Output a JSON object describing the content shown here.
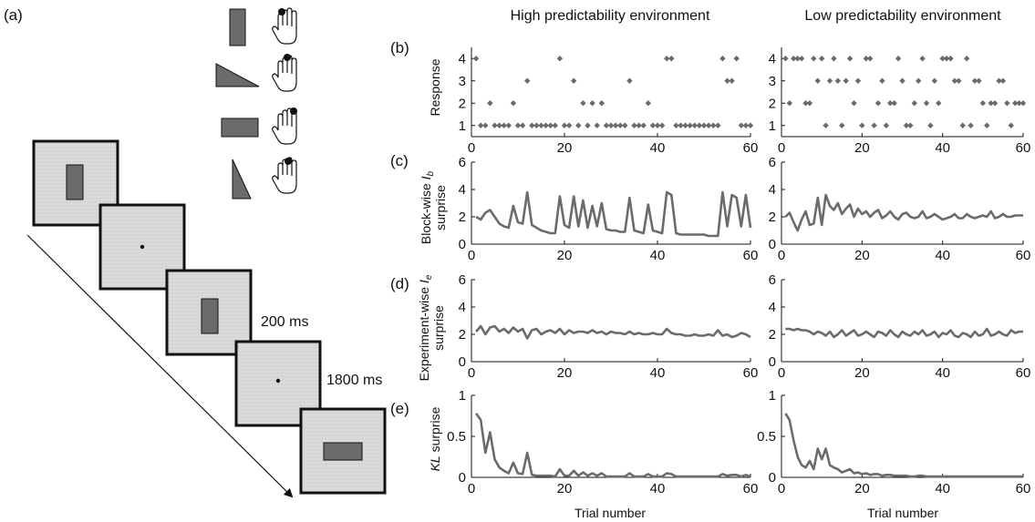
{
  "panels": {
    "a": "(a)",
    "b": "(b)",
    "c": "(c)",
    "d": "(d)",
    "e": "(e)"
  },
  "timing": {
    "stimulus": "200 ms",
    "interval": "1800 ms"
  },
  "icons": {
    "stimuli": [
      "vertical-rectangle",
      "horizontal-triangle",
      "horizontal-rectangle",
      "vertical-triangle"
    ],
    "hands": [
      "index-finger-hand-icon",
      "middle-finger-hand-icon",
      "ring-finger-hand-icon",
      "little-finger-hand-icon"
    ]
  },
  "colors": {
    "series": "#6b6b6b",
    "screen_fill": "#d9d9d9",
    "stimulus_fill": "#6b6b6b"
  },
  "columns": [
    "High predictability environment",
    "Low predictability environment"
  ],
  "chart_data": [
    {
      "id": "b-high",
      "type": "scatter",
      "ylabel": "Response",
      "xlim": [
        0,
        60
      ],
      "ylim": [
        0.5,
        4.5
      ],
      "xticks": [
        0,
        20,
        40,
        60
      ],
      "yticks": [
        1,
        2,
        3,
        4
      ],
      "x": [
        1,
        2,
        3,
        4,
        5,
        6,
        7,
        8,
        9,
        10,
        11,
        12,
        13,
        14,
        15,
        16,
        17,
        18,
        19,
        20,
        21,
        22,
        23,
        24,
        25,
        26,
        27,
        28,
        29,
        30,
        31,
        32,
        33,
        34,
        35,
        36,
        37,
        38,
        39,
        40,
        41,
        42,
        43,
        44,
        45,
        46,
        47,
        48,
        49,
        50,
        51,
        52,
        53,
        54,
        55,
        56,
        57,
        58,
        59,
        60
      ],
      "y": [
        4,
        1,
        1,
        2,
        1,
        1,
        1,
        1,
        2,
        1,
        1,
        3,
        1,
        1,
        1,
        1,
        1,
        1,
        4,
        1,
        1,
        3,
        1,
        2,
        1,
        2,
        1,
        2,
        1,
        1,
        1,
        1,
        1,
        3,
        1,
        1,
        1,
        2,
        1,
        1,
        1,
        4,
        4,
        1,
        1,
        1,
        1,
        1,
        1,
        1,
        1,
        1,
        1,
        4,
        3,
        3,
        4,
        1,
        1,
        1
      ]
    },
    {
      "id": "b-low",
      "type": "scatter",
      "ylabel": "Response",
      "xlim": [
        0,
        60
      ],
      "ylim": [
        0.5,
        4.5
      ],
      "xticks": [
        0,
        20,
        40,
        60
      ],
      "yticks": [
        1,
        2,
        3,
        4
      ],
      "x": [
        1,
        2,
        3,
        4,
        5,
        6,
        7,
        8,
        9,
        10,
        11,
        12,
        13,
        14,
        15,
        16,
        17,
        18,
        19,
        20,
        21,
        22,
        23,
        24,
        25,
        26,
        27,
        28,
        29,
        30,
        31,
        32,
        33,
        34,
        35,
        36,
        37,
        38,
        39,
        40,
        41,
        42,
        43,
        44,
        45,
        46,
        47,
        48,
        49,
        50,
        51,
        52,
        53,
        54,
        55,
        56,
        57,
        58,
        59,
        60
      ],
      "y": [
        4,
        2,
        4,
        4,
        4,
        2,
        2,
        4,
        3,
        4,
        1,
        3,
        4,
        3,
        1,
        3,
        4,
        2,
        3,
        1,
        4,
        4,
        1,
        2,
        3,
        1,
        2,
        2,
        4,
        3,
        1,
        1,
        2,
        3,
        4,
        2,
        1,
        3,
        2,
        4,
        4,
        4,
        3,
        3,
        1,
        4,
        1,
        3,
        3,
        2,
        1,
        2,
        2,
        3,
        3,
        2,
        1,
        2,
        2,
        2
      ]
    },
    {
      "id": "c-high",
      "type": "line",
      "ylabel": "Block-wise surprise I_b",
      "xlim": [
        0,
        60
      ],
      "ylim": [
        0,
        6
      ],
      "xticks": [
        0,
        20,
        40,
        60
      ],
      "yticks": [
        0,
        2,
        4,
        6
      ],
      "x": [
        1,
        2,
        3,
        4,
        5,
        6,
        7,
        8,
        9,
        10,
        11,
        12,
        13,
        14,
        15,
        16,
        17,
        18,
        19,
        20,
        21,
        22,
        23,
        24,
        25,
        26,
        27,
        28,
        29,
        30,
        31,
        32,
        33,
        34,
        35,
        36,
        37,
        38,
        39,
        40,
        41,
        42,
        43,
        44,
        45,
        46,
        47,
        48,
        49,
        50,
        51,
        52,
        53,
        54,
        55,
        56,
        57,
        58,
        59,
        60
      ],
      "y": [
        2.0,
        1.8,
        2.3,
        2.5,
        2.0,
        1.5,
        1.3,
        1.2,
        2.8,
        1.6,
        1.5,
        3.8,
        1.4,
        1.2,
        1.0,
        0.9,
        0.8,
        0.8,
        3.5,
        1.4,
        1.2,
        3.5,
        1.3,
        3.2,
        1.2,
        2.8,
        1.3,
        3.0,
        1.1,
        1.0,
        1.0,
        0.9,
        0.9,
        3.4,
        1.0,
        0.9,
        0.8,
        2.9,
        1.0,
        0.9,
        0.8,
        3.8,
        3.6,
        0.8,
        0.7,
        0.7,
        0.7,
        0.7,
        0.7,
        0.7,
        0.6,
        0.6,
        0.6,
        3.8,
        1.3,
        3.6,
        3.4,
        1.3,
        3.6,
        1.2
      ]
    },
    {
      "id": "c-low",
      "type": "line",
      "ylabel": "Block-wise surprise I_b",
      "xlim": [
        0,
        60
      ],
      "ylim": [
        0,
        6
      ],
      "xticks": [
        0,
        20,
        40,
        60
      ],
      "yticks": [
        0,
        2,
        4,
        6
      ],
      "x": [
        1,
        2,
        3,
        4,
        5,
        6,
        7,
        8,
        9,
        10,
        11,
        12,
        13,
        14,
        15,
        16,
        17,
        18,
        19,
        20,
        21,
        22,
        23,
        24,
        25,
        26,
        27,
        28,
        29,
        30,
        31,
        32,
        33,
        34,
        35,
        36,
        37,
        38,
        39,
        40,
        41,
        42,
        43,
        44,
        45,
        46,
        47,
        48,
        49,
        50,
        51,
        52,
        53,
        54,
        55,
        56,
        57,
        58,
        59,
        60
      ],
      "y": [
        2.0,
        2.3,
        1.6,
        1.0,
        1.8,
        2.4,
        1.4,
        1.5,
        3.4,
        1.4,
        3.6,
        2.8,
        2.5,
        3.0,
        2.2,
        2.6,
        2.9,
        2.0,
        2.6,
        2.2,
        2.4,
        2.0,
        2.3,
        2.5,
        1.9,
        2.1,
        2.4,
        2.0,
        1.8,
        2.2,
        2.3,
        2.0,
        1.9,
        2.0,
        2.4,
        1.9,
        2.0,
        2.2,
        2.0,
        1.8,
        1.9,
        2.0,
        2.2,
        1.9,
        1.9,
        2.2,
        2.0,
        1.9,
        2.0,
        2.1,
        2.0,
        2.4,
        1.9,
        2.0,
        2.2,
        2.0,
        2.0,
        2.1,
        2.1,
        2.1
      ]
    },
    {
      "id": "d-high",
      "type": "line",
      "ylabel": "Experiment-wise surprise I_e",
      "xlim": [
        0,
        60
      ],
      "ylim": [
        0,
        6
      ],
      "xticks": [
        0,
        20,
        40,
        60
      ],
      "yticks": [
        0,
        2,
        4,
        6
      ],
      "x": [
        1,
        2,
        3,
        4,
        5,
        6,
        7,
        8,
        9,
        10,
        11,
        12,
        13,
        14,
        15,
        16,
        17,
        18,
        19,
        20,
        21,
        22,
        23,
        24,
        25,
        26,
        27,
        28,
        29,
        30,
        31,
        32,
        33,
        34,
        35,
        36,
        37,
        38,
        39,
        40,
        41,
        42,
        43,
        44,
        45,
        46,
        47,
        48,
        49,
        50,
        51,
        52,
        53,
        54,
        55,
        56,
        57,
        58,
        59,
        60
      ],
      "y": [
        2.2,
        2.6,
        2.0,
        2.5,
        2.6,
        2.2,
        2.4,
        2.1,
        2.5,
        2.2,
        2.4,
        1.7,
        2.3,
        2.4,
        2.0,
        2.2,
        2.3,
        2.1,
        2.4,
        2.0,
        2.3,
        2.1,
        2.2,
        2.2,
        2.1,
        2.3,
        2.1,
        2.2,
        2.0,
        2.2,
        2.1,
        2.1,
        2.0,
        2.2,
        2.0,
        2.1,
        2.0,
        2.0,
        2.1,
        2.0,
        2.0,
        2.4,
        2.1,
        2.0,
        2.0,
        1.9,
        1.9,
        2.0,
        1.9,
        1.9,
        2.0,
        1.9,
        2.3,
        1.9,
        2.0,
        1.8,
        1.9,
        2.1,
        2.0,
        1.8
      ]
    },
    {
      "id": "d-low",
      "type": "line",
      "ylabel": "Experiment-wise surprise I_e",
      "xlim": [
        0,
        60
      ],
      "ylim": [
        0,
        6
      ],
      "xticks": [
        0,
        20,
        40,
        60
      ],
      "yticks": [
        0,
        2,
        4,
        6
      ],
      "x": [
        1,
        2,
        3,
        4,
        5,
        6,
        7,
        8,
        9,
        10,
        11,
        12,
        13,
        14,
        15,
        16,
        17,
        18,
        19,
        20,
        21,
        22,
        23,
        24,
        25,
        26,
        27,
        28,
        29,
        30,
        31,
        32,
        33,
        34,
        35,
        36,
        37,
        38,
        39,
        40,
        41,
        42,
        43,
        44,
        45,
        46,
        47,
        48,
        49,
        50,
        51,
        52,
        53,
        54,
        55,
        56,
        57,
        58,
        59,
        60
      ],
      "y": [
        2.4,
        2.4,
        2.3,
        2.4,
        2.3,
        2.3,
        2.2,
        2.0,
        2.2,
        2.1,
        1.9,
        2.2,
        1.8,
        2.0,
        2.3,
        1.9,
        2.1,
        2.3,
        1.9,
        2.0,
        2.2,
        2.0,
        1.8,
        2.2,
        2.1,
        1.9,
        2.3,
        2.0,
        1.8,
        2.2,
        2.0,
        1.9,
        2.2,
        2.0,
        2.3,
        1.9,
        2.0,
        2.2,
        1.8,
        2.1,
        2.0,
        2.3,
        1.9,
        1.8,
        2.1,
        2.0,
        1.8,
        2.2,
        1.9,
        2.0,
        2.4,
        1.9,
        2.0,
        2.2,
        2.0,
        1.9,
        2.3,
        2.1,
        2.2,
        2.2
      ]
    },
    {
      "id": "e-high",
      "type": "line",
      "ylabel": "KL surprise",
      "xlabel": "Trial number",
      "xlim": [
        0,
        60
      ],
      "ylim": [
        0,
        1
      ],
      "xticks": [
        0,
        20,
        40,
        60
      ],
      "yticks": [
        0,
        0.5,
        1
      ],
      "yticklabels": [
        "0",
        "0.5",
        "1"
      ],
      "x": [
        1,
        2,
        3,
        4,
        5,
        6,
        7,
        8,
        9,
        10,
        11,
        12,
        13,
        14,
        15,
        16,
        17,
        18,
        19,
        20,
        21,
        22,
        23,
        24,
        25,
        26,
        27,
        28,
        29,
        30,
        31,
        32,
        33,
        34,
        35,
        36,
        37,
        38,
        39,
        40,
        41,
        42,
        43,
        44,
        45,
        46,
        47,
        48,
        49,
        50,
        51,
        52,
        53,
        54,
        55,
        56,
        57,
        58,
        59,
        60
      ],
      "y": [
        0.78,
        0.7,
        0.3,
        0.55,
        0.22,
        0.12,
        0.08,
        0.05,
        0.18,
        0.05,
        0.04,
        0.3,
        0.03,
        0.02,
        0.02,
        0.02,
        0.02,
        0.01,
        0.1,
        0.02,
        0.02,
        0.08,
        0.02,
        0.06,
        0.02,
        0.05,
        0.02,
        0.05,
        0.01,
        0.01,
        0.01,
        0.01,
        0.01,
        0.05,
        0.01,
        0.01,
        0.01,
        0.04,
        0.01,
        0.01,
        0.01,
        0.05,
        0.04,
        0.01,
        0.01,
        0.01,
        0.01,
        0.01,
        0.01,
        0.01,
        0.01,
        0.01,
        0.01,
        0.04,
        0.02,
        0.03,
        0.03,
        0.01,
        0.03,
        0.01
      ]
    },
    {
      "id": "e-low",
      "type": "line",
      "ylabel": "KL surprise",
      "xlabel": "Trial number",
      "xlim": [
        0,
        60
      ],
      "ylim": [
        0,
        1
      ],
      "xticks": [
        0,
        20,
        40,
        60
      ],
      "yticks": [
        0,
        0.5,
        1
      ],
      "yticklabels": [
        "0",
        "0.5",
        "1"
      ],
      "x": [
        1,
        2,
        3,
        4,
        5,
        6,
        7,
        8,
        9,
        10,
        11,
        12,
        13,
        14,
        15,
        16,
        17,
        18,
        19,
        20,
        21,
        22,
        23,
        24,
        25,
        26,
        27,
        28,
        29,
        30,
        31,
        32,
        33,
        34,
        35,
        36,
        37,
        38,
        39,
        40,
        41,
        42,
        43,
        44,
        45,
        46,
        47,
        48,
        49,
        50,
        51,
        52,
        53,
        54,
        55,
        56,
        57,
        58,
        59,
        60
      ],
      "y": [
        0.78,
        0.7,
        0.45,
        0.25,
        0.15,
        0.12,
        0.2,
        0.1,
        0.35,
        0.22,
        0.35,
        0.15,
        0.12,
        0.1,
        0.06,
        0.08,
        0.1,
        0.05,
        0.06,
        0.04,
        0.05,
        0.03,
        0.04,
        0.04,
        0.02,
        0.03,
        0.03,
        0.02,
        0.02,
        0.02,
        0.02,
        0.01,
        0.01,
        0.02,
        0.02,
        0.01,
        0.01,
        0.01,
        0.01,
        0.01,
        0.01,
        0.01,
        0.01,
        0.01,
        0.01,
        0.01,
        0.01,
        0.01,
        0.01,
        0.01,
        0.01,
        0.01,
        0.01,
        0.01,
        0.01,
        0.01,
        0.01,
        0.01,
        0.01,
        0.01
      ]
    }
  ]
}
